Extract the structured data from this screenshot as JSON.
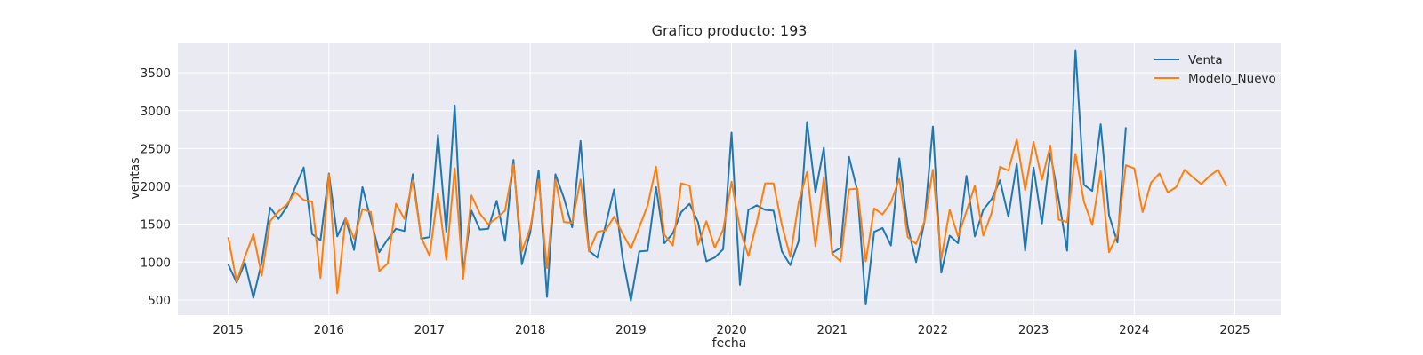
{
  "chart_data": {
    "type": "line",
    "title": "Grafico producto: 193",
    "xlabel": "fecha",
    "ylabel": "ventas",
    "xlim": [
      "2014-07-01",
      "2025-06-15"
    ],
    "ylim": [
      300,
      3900
    ],
    "grid": true,
    "legend_position": "top-right",
    "x_ticks": [
      "2015",
      "2016",
      "2017",
      "2018",
      "2019",
      "2020",
      "2021",
      "2022",
      "2023",
      "2024",
      "2025"
    ],
    "y_ticks": [
      500,
      1000,
      1500,
      2000,
      2500,
      3000,
      3500
    ],
    "series": [
      {
        "name": "Venta",
        "color": "#1f77b4",
        "start": "2015-01",
        "values": [
          970,
          730,
          990,
          530,
          1000,
          1720,
          1570,
          1730,
          1990,
          2250,
          1370,
          1290,
          2170,
          1340,
          1580,
          1160,
          1990,
          1560,
          1130,
          1300,
          1440,
          1410,
          2160,
          1310,
          1330,
          2680,
          1400,
          3070,
          860,
          1680,
          1430,
          1440,
          1810,
          1280,
          2350,
          970,
          1390,
          2210,
          540,
          2160,
          1850,
          1460,
          2600,
          1150,
          1060,
          1490,
          1960,
          1070,
          490,
          1140,
          1150,
          1990,
          1250,
          1380,
          1660,
          1770,
          1530,
          1010,
          1060,
          1170,
          2710,
          700,
          1690,
          1750,
          1690,
          1680,
          1140,
          960,
          1280,
          2850,
          1920,
          2510,
          1120,
          1190,
          2390,
          1940,
          440,
          1400,
          1450,
          1220,
          2370,
          1470,
          1000,
          1540,
          2790,
          860,
          1350,
          1250,
          2140,
          1340,
          1690,
          1830,
          2080,
          1600,
          2300,
          1150,
          2250,
          1510,
          2440,
          1830,
          1150,
          3800,
          2020,
          1940,
          2820,
          1620,
          1260,
          2780
        ],
        "note": ""
      },
      {
        "name": "Modelo_Nuevo",
        "color": "#ff7f0e",
        "start": "2015-01",
        "values": [
          1330,
          740,
          1070,
          1370,
          820,
          1540,
          1670,
          1760,
          1920,
          1820,
          1800,
          790,
          2160,
          590,
          1580,
          1310,
          1700,
          1660,
          880,
          980,
          1770,
          1570,
          2080,
          1330,
          1080,
          1910,
          1030,
          2240,
          780,
          1880,
          1640,
          1500,
          1580,
          1680,
          2290,
          1140,
          1450,
          2090,
          920,
          2090,
          1530,
          1520,
          2090,
          1140,
          1400,
          1420,
          1600,
          1380,
          1180,
          1460,
          1750,
          2260,
          1360,
          1220,
          2040,
          2010,
          1230,
          1540,
          1190,
          1430,
          2060,
          1440,
          1080,
          1520,
          2040,
          2040,
          1490,
          1070,
          1790,
          2190,
          1210,
          2120,
          1110,
          1010,
          1960,
          1970,
          1010,
          1710,
          1630,
          1790,
          2100,
          1330,
          1240,
          1540,
          2220,
          1040,
          1690,
          1340,
          1670,
          2010,
          1350,
          1650,
          2260,
          2210,
          2620,
          1950,
          2590,
          2090,
          2540,
          1560,
          1530,
          2430,
          1800,
          1490,
          2200,
          1130,
          1360,
          2280,
          2240,
          1660,
          2050,
          2170,
          1920,
          1990,
          2220,
          2120,
          2030,
          2140,
          2220,
          2000
        ]
      }
    ]
  }
}
